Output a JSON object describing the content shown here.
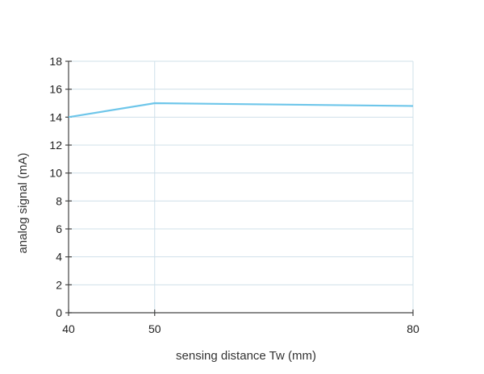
{
  "chart_data": {
    "type": "line",
    "xlabel": "sensing distance Tw (mm)",
    "ylabel": "analog signal (mA)",
    "xlim": [
      40,
      80
    ],
    "ylim": [
      0,
      18
    ],
    "x_ticks": [
      40,
      50,
      80
    ],
    "y_ticks": [
      0,
      2,
      4,
      6,
      8,
      10,
      12,
      14,
      16,
      18
    ],
    "grid": true,
    "legend": "none",
    "series": [
      {
        "x": [
          40,
          50,
          80
        ],
        "y": [
          14,
          15,
          14.8
        ],
        "color": "#6ec6ea"
      }
    ],
    "colors": {
      "grid": "#cfe0ea",
      "axis": "#444444",
      "line": "#6ec6ea"
    }
  }
}
